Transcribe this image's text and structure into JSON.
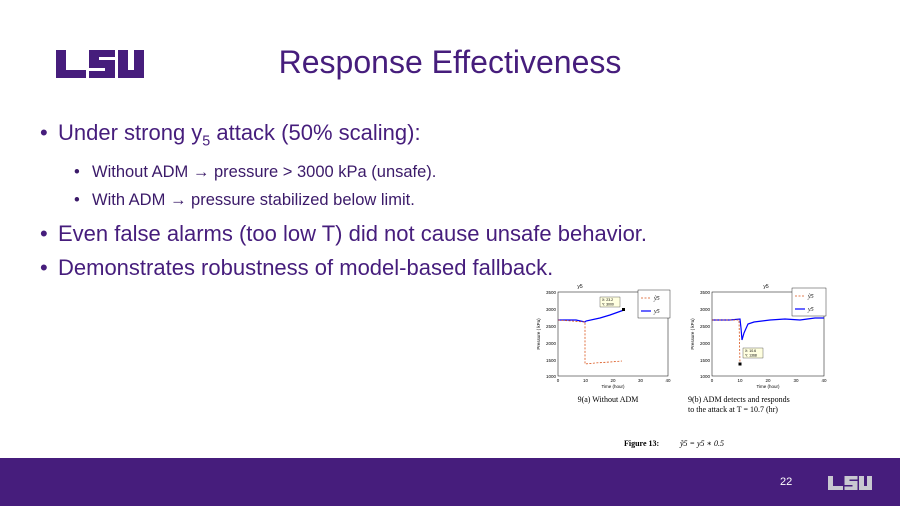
{
  "title": "Response Effectiveness",
  "logo_text": "LSU",
  "bullets": {
    "b1_prefix": "Under strong y",
    "b1_sub": "5",
    "b1_suffix": " attack (50% scaling):",
    "b1_1_a": "Without ADM",
    "b1_1_b": "pressure > 3000 kPa (unsafe).",
    "b1_2_a": "With ADM",
    "b1_2_b": "pressure stabilized below limit.",
    "b2": "Even false alarms (too low T) did not cause unsafe behavior.",
    "b3": "Demonstrates robustness of model-based fallback."
  },
  "arrow": "→",
  "bullet_char": "•",
  "page_number": "22",
  "colors": {
    "purple": "#461d7c",
    "red": "#d95319",
    "blue": "#0000ff"
  },
  "figure": {
    "panel_a": {
      "title": "y5",
      "ylabel": "Pressure ( kPa)",
      "xlabel": "Time (hour)",
      "caption": "9(a) Without ADM",
      "yticks": [
        "3500",
        "3000",
        "2500",
        "2000",
        "1500",
        "1000"
      ],
      "xticks": [
        "0",
        "10",
        "20",
        "30",
        "40"
      ],
      "datatip_x": "X: 23.2",
      "datatip_y": "Y: 3000",
      "legend_1": "ỹ5",
      "legend_2": "y5"
    },
    "panel_b": {
      "title": "y5",
      "ylabel": "Pressure ( kPa)",
      "xlabel": "Time (hour)",
      "caption_1": "9(b) ADM detects and responds",
      "caption_2": "to the attack at T = 10.7 (hr)",
      "yticks": [
        "3500",
        "3000",
        "2500",
        "2000",
        "1500",
        "1000"
      ],
      "xticks": [
        "0",
        "10",
        "20",
        "30",
        "40"
      ],
      "datatip_x": "X: 10.6",
      "datatip_y": "Y: 1368",
      "legend_1": "ỹ5",
      "legend_2": "y5"
    },
    "figure_caption_label": "Figure 13:",
    "figure_caption_eq": "ỹ5 = y5 ∗ 0.5"
  }
}
